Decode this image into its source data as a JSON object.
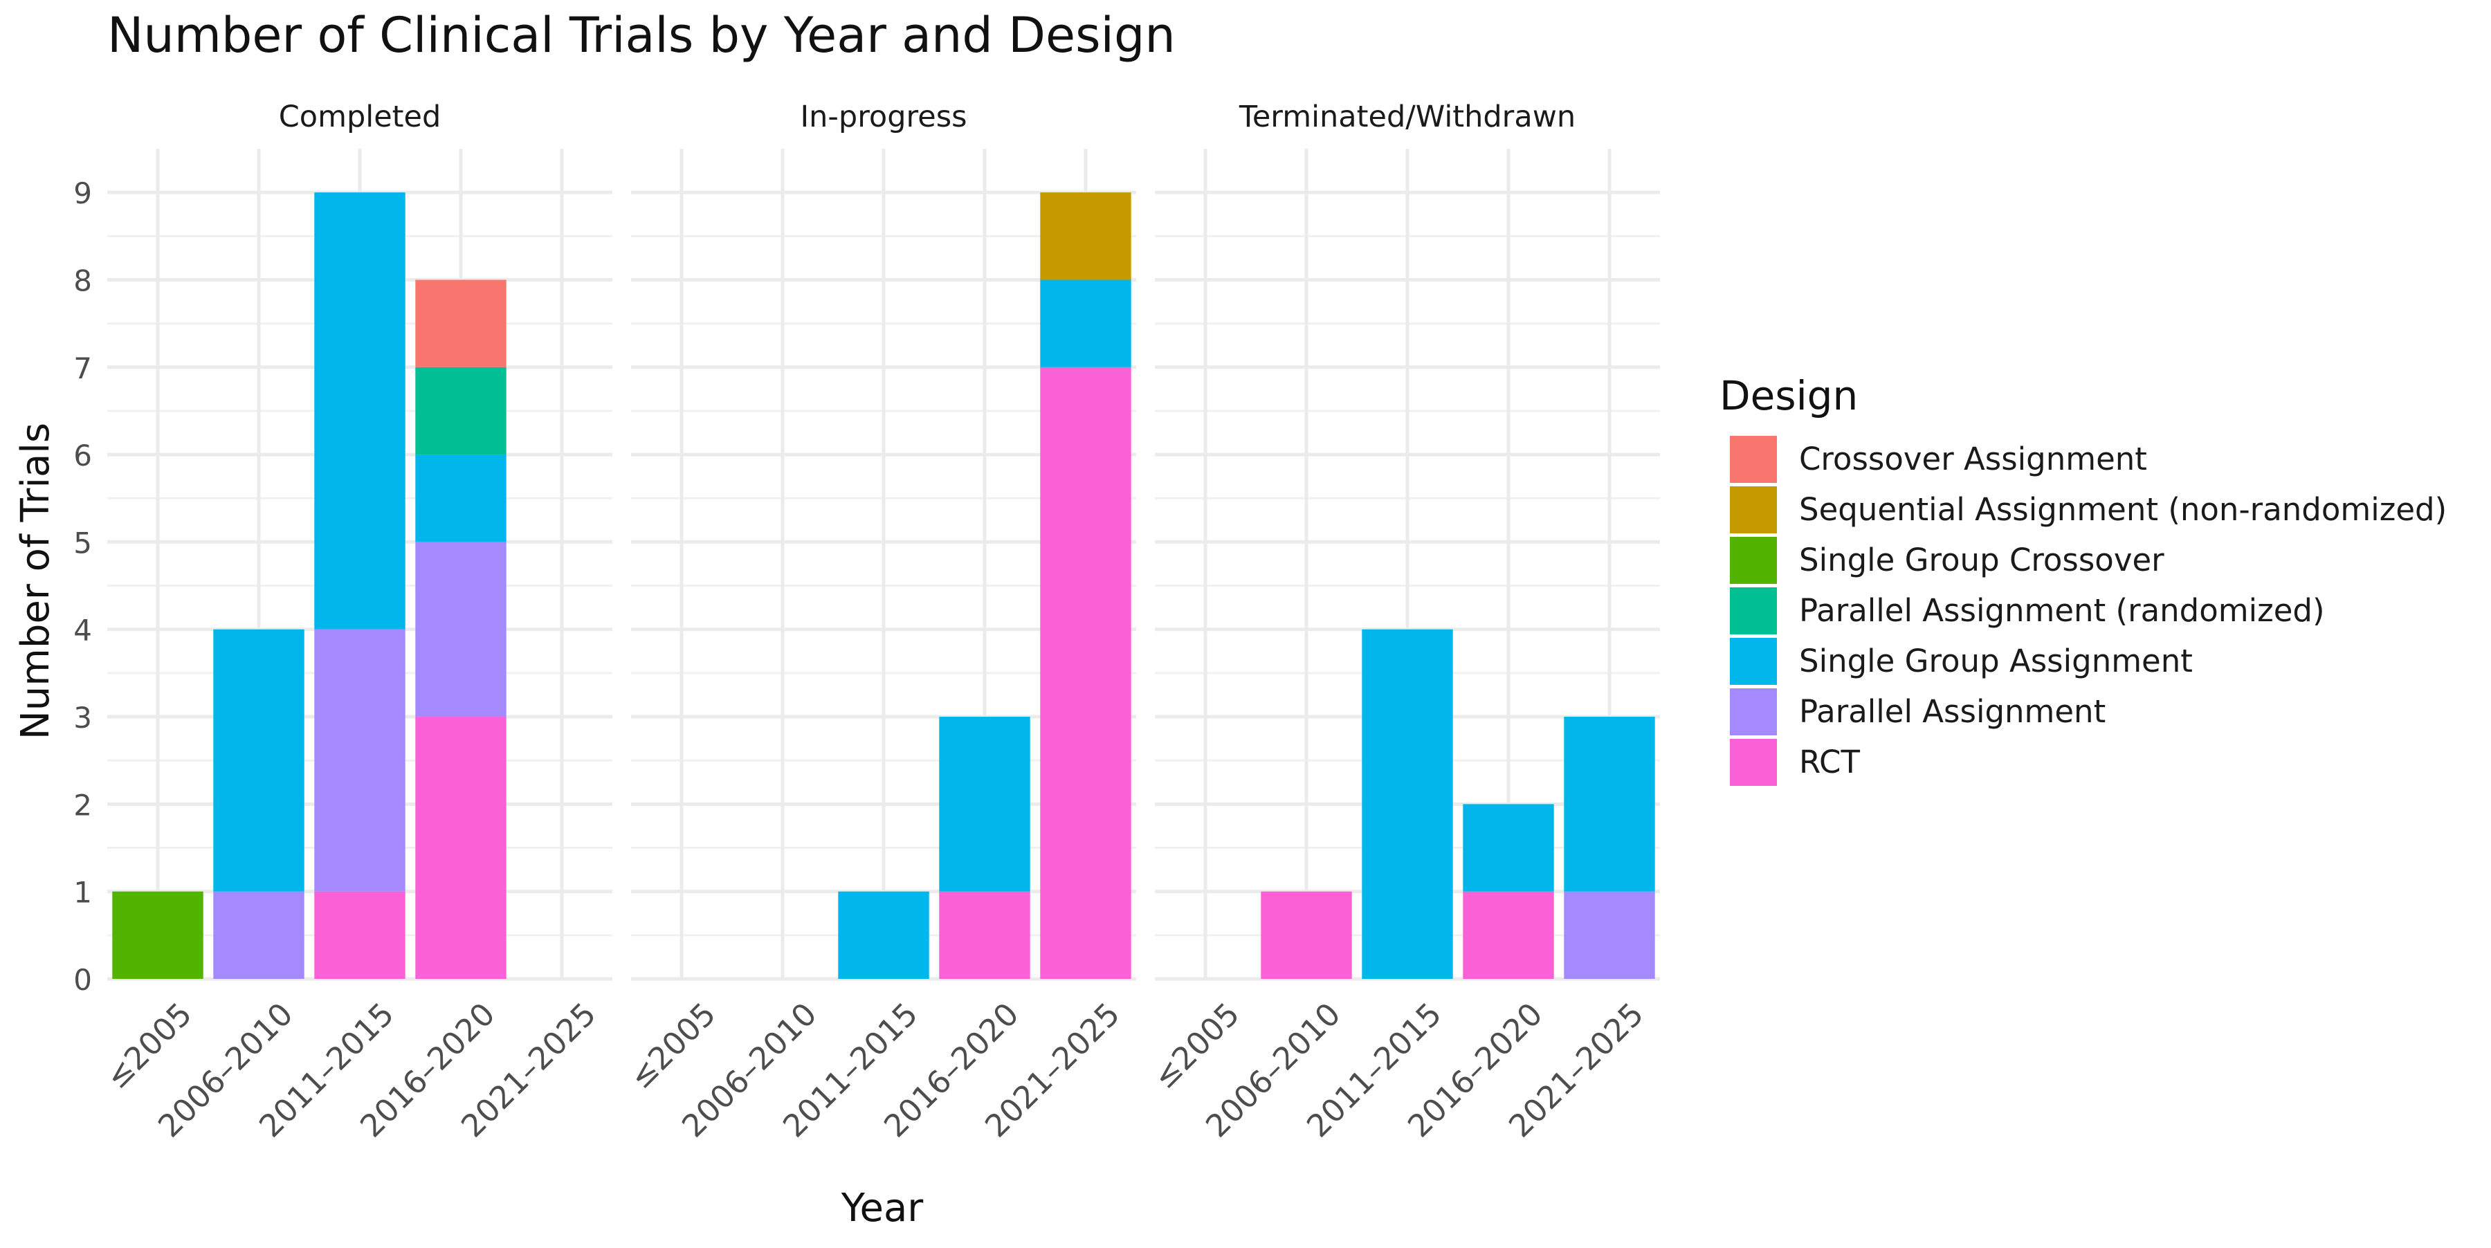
{
  "chart_data": {
    "type": "bar",
    "stacked": true,
    "faceted": true,
    "title": "Number of Clinical Trials by Year and Design",
    "xlabel": "Year",
    "ylabel": "Number of Trials",
    "ylim": [
      0,
      9.5
    ],
    "yticks": [
      0,
      1,
      2,
      3,
      4,
      5,
      6,
      7,
      8,
      9
    ],
    "grid": true,
    "categories": [
      "≤2005",
      "2006–2010",
      "2011–2015",
      "2016–2020",
      "2021–2025"
    ],
    "facets": [
      "Completed",
      "In-progress",
      "Terminated/Withdrawn"
    ],
    "legend": {
      "title": "Design",
      "placement": "right",
      "entries": [
        {
          "name": "Crossover Assignment",
          "color": "#F8766D"
        },
        {
          "name": "Sequential Assignment (non-randomized)",
          "color": "#C49A00"
        },
        {
          "name": "Single Group Crossover",
          "color": "#53B400"
        },
        {
          "name": "Parallel Assignment (randomized)",
          "color": "#00C094"
        },
        {
          "name": "Single Group Assignment",
          "color": "#00B6EB"
        },
        {
          "name": "Parallel Assignment",
          "color": "#A58AFF"
        },
        {
          "name": "RCT",
          "color": "#FB61D7"
        }
      ]
    },
    "stack_order": [
      "RCT",
      "Parallel Assignment",
      "Single Group Assignment",
      "Parallel Assignment (randomized)",
      "Single Group Crossover",
      "Sequential Assignment (non-randomized)",
      "Crossover Assignment"
    ],
    "panels": [
      {
        "facet": "Completed",
        "series": [
          {
            "name": "RCT",
            "values": [
              0,
              0,
              1,
              3,
              0
            ]
          },
          {
            "name": "Parallel Assignment",
            "values": [
              0,
              1,
              3,
              2,
              0
            ]
          },
          {
            "name": "Single Group Assignment",
            "values": [
              0,
              3,
              5,
              1,
              0
            ]
          },
          {
            "name": "Parallel Assignment (randomized)",
            "values": [
              0,
              0,
              0,
              1,
              0
            ]
          },
          {
            "name": "Single Group Crossover",
            "values": [
              1,
              0,
              0,
              0,
              0
            ]
          },
          {
            "name": "Sequential Assignment (non-randomized)",
            "values": [
              0,
              0,
              0,
              0,
              0
            ]
          },
          {
            "name": "Crossover Assignment",
            "values": [
              0,
              0,
              0,
              1,
              0
            ]
          }
        ]
      },
      {
        "facet": "In-progress",
        "series": [
          {
            "name": "RCT",
            "values": [
              0,
              0,
              0,
              1,
              7
            ]
          },
          {
            "name": "Parallel Assignment",
            "values": [
              0,
              0,
              0,
              0,
              0
            ]
          },
          {
            "name": "Single Group Assignment",
            "values": [
              0,
              0,
              1,
              2,
              1
            ]
          },
          {
            "name": "Parallel Assignment (randomized)",
            "values": [
              0,
              0,
              0,
              0,
              0
            ]
          },
          {
            "name": "Single Group Crossover",
            "values": [
              0,
              0,
              0,
              0,
              0
            ]
          },
          {
            "name": "Sequential Assignment (non-randomized)",
            "values": [
              0,
              0,
              0,
              0,
              1
            ]
          },
          {
            "name": "Crossover Assignment",
            "values": [
              0,
              0,
              0,
              0,
              0
            ]
          }
        ]
      },
      {
        "facet": "Terminated/Withdrawn",
        "series": [
          {
            "name": "RCT",
            "values": [
              0,
              1,
              0,
              1,
              0
            ]
          },
          {
            "name": "Parallel Assignment",
            "values": [
              0,
              0,
              0,
              0,
              1
            ]
          },
          {
            "name": "Single Group Assignment",
            "values": [
              0,
              0,
              4,
              1,
              2
            ]
          },
          {
            "name": "Parallel Assignment (randomized)",
            "values": [
              0,
              0,
              0,
              0,
              0
            ]
          },
          {
            "name": "Single Group Crossover",
            "values": [
              0,
              0,
              0,
              0,
              0
            ]
          },
          {
            "name": "Sequential Assignment (non-randomized)",
            "values": [
              0,
              0,
              0,
              0,
              0
            ]
          },
          {
            "name": "Crossover Assignment",
            "values": [
              0,
              0,
              0,
              0,
              0
            ]
          }
        ]
      }
    ]
  }
}
